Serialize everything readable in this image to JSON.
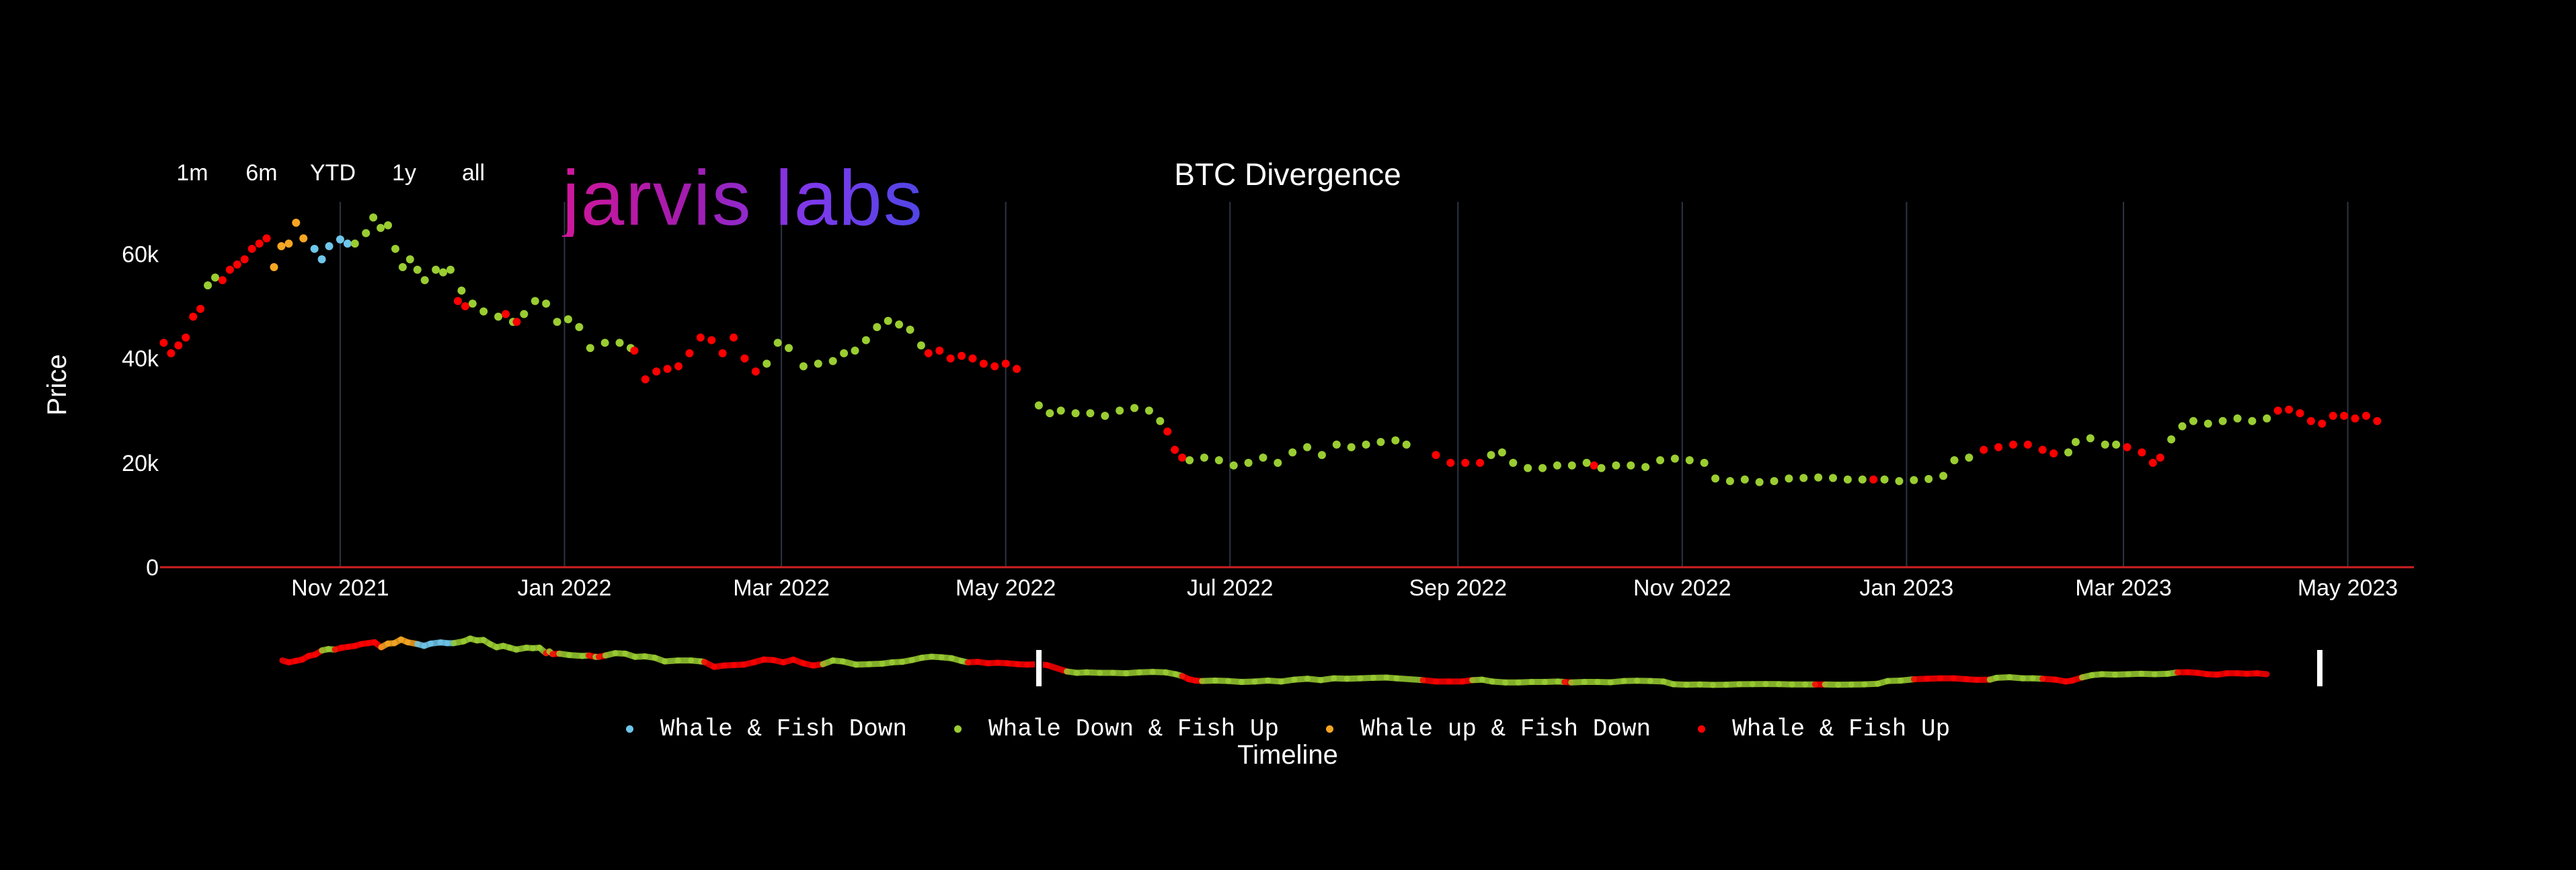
{
  "range_buttons": [
    "1m",
    "6m",
    "YTD",
    "1y",
    "all"
  ],
  "logo_text": "jarvis labs",
  "chart_data": {
    "type": "scatter",
    "title": "BTC Divergence",
    "ylabel": "Price",
    "xlabel": "Timeline",
    "ylim": [
      0,
      70000
    ],
    "xlim": [
      "2021-09-13",
      "2023-05-19"
    ],
    "x_ticks": [
      "2021-11-01",
      "2022-01-01",
      "2022-03-01",
      "2022-05-01",
      "2022-07-01",
      "2022-09-01",
      "2022-11-01",
      "2023-01-01",
      "2023-03-01",
      "2023-05-01"
    ],
    "x_tick_labels": [
      "Nov 2021",
      "Jan 2022",
      "Mar 2022",
      "May 2022",
      "Jul 2022",
      "Sep 2022",
      "Nov 2022",
      "Jan 2023",
      "Mar 2023",
      "May 2023"
    ],
    "y_ticks": [
      0,
      20000,
      40000,
      60000
    ],
    "y_tick_labels": [
      "0",
      "20k",
      "40k",
      "60k"
    ],
    "grid": "vertical",
    "legend_position": "bottom",
    "series": [
      {
        "name": "Whale & Fish Down",
        "color": "#6ec6ea",
        "points": [
          [
            "2021-10-25",
            61000
          ],
          [
            "2021-10-27",
            59000
          ],
          [
            "2021-10-29",
            61500
          ],
          [
            "2021-11-01",
            62800
          ],
          [
            "2021-11-03",
            62000
          ]
        ]
      },
      {
        "name": "Whale Down & Fish Up",
        "color": "#9acd32",
        "points": [
          [
            "2021-09-26",
            54000
          ],
          [
            "2021-09-28",
            55500
          ],
          [
            "2021-11-05",
            62000
          ],
          [
            "2021-11-08",
            64000
          ],
          [
            "2021-11-10",
            67000
          ],
          [
            "2021-11-12",
            65000
          ],
          [
            "2021-11-14",
            65500
          ],
          [
            "2021-11-16",
            61000
          ],
          [
            "2021-11-18",
            57500
          ],
          [
            "2021-11-20",
            59000
          ],
          [
            "2021-11-22",
            57000
          ],
          [
            "2021-11-24",
            55000
          ],
          [
            "2021-11-27",
            57000
          ],
          [
            "2021-11-29",
            56500
          ],
          [
            "2021-12-01",
            57000
          ],
          [
            "2021-12-04",
            53000
          ],
          [
            "2021-12-07",
            50500
          ],
          [
            "2021-12-10",
            49000
          ],
          [
            "2021-12-14",
            48000
          ],
          [
            "2021-12-18",
            47000
          ],
          [
            "2021-12-21",
            48500
          ],
          [
            "2021-12-24",
            51000
          ],
          [
            "2021-12-27",
            50500
          ],
          [
            "2021-12-30",
            47000
          ],
          [
            "2022-01-02",
            47500
          ],
          [
            "2022-01-05",
            46000
          ],
          [
            "2022-01-08",
            42000
          ],
          [
            "2022-01-12",
            43000
          ],
          [
            "2022-01-16",
            43000
          ],
          [
            "2022-01-19",
            42000
          ],
          [
            "2022-02-25",
            39000
          ],
          [
            "2022-02-28",
            43000
          ],
          [
            "2022-03-03",
            42000
          ],
          [
            "2022-03-07",
            38500
          ],
          [
            "2022-03-11",
            39000
          ],
          [
            "2022-03-15",
            39500
          ],
          [
            "2022-03-18",
            41000
          ],
          [
            "2022-03-21",
            41500
          ],
          [
            "2022-03-24",
            43500
          ],
          [
            "2022-03-27",
            46000
          ],
          [
            "2022-03-30",
            47200
          ],
          [
            "2022-04-02",
            46500
          ],
          [
            "2022-04-05",
            45500
          ],
          [
            "2022-04-08",
            42500
          ],
          [
            "2022-05-10",
            31000
          ],
          [
            "2022-05-13",
            29500
          ],
          [
            "2022-05-16",
            30000
          ],
          [
            "2022-05-20",
            29500
          ],
          [
            "2022-05-24",
            29500
          ],
          [
            "2022-05-28",
            29000
          ],
          [
            "2022-06-01",
            30000
          ],
          [
            "2022-06-05",
            30500
          ],
          [
            "2022-06-09",
            30000
          ],
          [
            "2022-06-12",
            28000
          ],
          [
            "2022-06-20",
            20500
          ],
          [
            "2022-06-24",
            21000
          ],
          [
            "2022-06-28",
            20500
          ],
          [
            "2022-07-02",
            19500
          ],
          [
            "2022-07-06",
            20000
          ],
          [
            "2022-07-10",
            21000
          ],
          [
            "2022-07-14",
            20000
          ],
          [
            "2022-07-18",
            22000
          ],
          [
            "2022-07-22",
            23000
          ],
          [
            "2022-07-26",
            21500
          ],
          [
            "2022-07-30",
            23500
          ],
          [
            "2022-08-03",
            23000
          ],
          [
            "2022-08-07",
            23500
          ],
          [
            "2022-08-11",
            24000
          ],
          [
            "2022-08-15",
            24300
          ],
          [
            "2022-08-18",
            23500
          ],
          [
            "2022-09-10",
            21500
          ],
          [
            "2022-09-13",
            22000
          ],
          [
            "2022-09-16",
            20000
          ],
          [
            "2022-09-20",
            19000
          ],
          [
            "2022-09-24",
            19000
          ],
          [
            "2022-09-28",
            19500
          ],
          [
            "2022-10-02",
            19500
          ],
          [
            "2022-10-06",
            20000
          ],
          [
            "2022-10-10",
            19000
          ],
          [
            "2022-10-14",
            19500
          ],
          [
            "2022-10-18",
            19500
          ],
          [
            "2022-10-22",
            19200
          ],
          [
            "2022-10-26",
            20500
          ],
          [
            "2022-10-30",
            20800
          ],
          [
            "2022-11-03",
            20500
          ],
          [
            "2022-11-07",
            20000
          ],
          [
            "2022-11-10",
            17000
          ],
          [
            "2022-11-14",
            16500
          ],
          [
            "2022-11-18",
            16800
          ],
          [
            "2022-11-22",
            16300
          ],
          [
            "2022-11-26",
            16500
          ],
          [
            "2022-11-30",
            17000
          ],
          [
            "2022-12-04",
            17100
          ],
          [
            "2022-12-08",
            17200
          ],
          [
            "2022-12-12",
            17100
          ],
          [
            "2022-12-16",
            16800
          ],
          [
            "2022-12-20",
            16800
          ],
          [
            "2022-12-26",
            16800
          ],
          [
            "2022-12-30",
            16500
          ],
          [
            "2023-01-03",
            16700
          ],
          [
            "2023-01-07",
            16900
          ],
          [
            "2023-01-11",
            17500
          ],
          [
            "2023-01-14",
            20500
          ],
          [
            "2023-01-18",
            21000
          ],
          [
            "2023-02-14",
            22000
          ],
          [
            "2023-02-16",
            24000
          ],
          [
            "2023-02-20",
            24700
          ],
          [
            "2023-02-24",
            23500
          ],
          [
            "2023-02-27",
            23500
          ],
          [
            "2023-03-14",
            24500
          ],
          [
            "2023-03-17",
            27000
          ],
          [
            "2023-03-20",
            28000
          ],
          [
            "2023-03-24",
            27500
          ],
          [
            "2023-03-28",
            28000
          ],
          [
            "2023-04-01",
            28500
          ],
          [
            "2023-04-05",
            28000
          ],
          [
            "2023-04-09",
            28500
          ]
        ]
      },
      {
        "name": "Whale up & Fish Down",
        "color": "#f5a623",
        "points": [
          [
            "2021-10-14",
            57500
          ],
          [
            "2021-10-16",
            61500
          ],
          [
            "2021-10-18",
            62000
          ],
          [
            "2021-10-20",
            66000
          ],
          [
            "2021-10-22",
            63000
          ]
        ]
      },
      {
        "name": "Whale & Fish Up",
        "color": "#ff0000",
        "points": [
          [
            "2021-09-14",
            43000
          ],
          [
            "2021-09-16",
            41000
          ],
          [
            "2021-09-18",
            42500
          ],
          [
            "2021-09-20",
            44000
          ],
          [
            "2021-09-22",
            48000
          ],
          [
            "2021-09-24",
            49500
          ],
          [
            "2021-09-30",
            55000
          ],
          [
            "2021-10-02",
            57000
          ],
          [
            "2021-10-04",
            58000
          ],
          [
            "2021-10-06",
            59000
          ],
          [
            "2021-10-08",
            61000
          ],
          [
            "2021-10-10",
            62000
          ],
          [
            "2021-10-12",
            63000
          ],
          [
            "2021-12-03",
            51000
          ],
          [
            "2021-12-05",
            50000
          ],
          [
            "2021-12-16",
            48500
          ],
          [
            "2021-12-19",
            47000
          ],
          [
            "2022-01-20",
            41500
          ],
          [
            "2022-01-23",
            36000
          ],
          [
            "2022-01-26",
            37500
          ],
          [
            "2022-01-29",
            38000
          ],
          [
            "2022-02-01",
            38500
          ],
          [
            "2022-02-04",
            41000
          ],
          [
            "2022-02-07",
            44000
          ],
          [
            "2022-02-10",
            43500
          ],
          [
            "2022-02-13",
            41000
          ],
          [
            "2022-02-16",
            44000
          ],
          [
            "2022-02-19",
            40000
          ],
          [
            "2022-02-22",
            37500
          ],
          [
            "2022-04-10",
            41000
          ],
          [
            "2022-04-13",
            41500
          ],
          [
            "2022-04-16",
            40000
          ],
          [
            "2022-04-19",
            40500
          ],
          [
            "2022-04-22",
            40000
          ],
          [
            "2022-04-25",
            39000
          ],
          [
            "2022-04-28",
            38500
          ],
          [
            "2022-05-01",
            39000
          ],
          [
            "2022-05-04",
            38000
          ],
          [
            "2022-06-14",
            26000
          ],
          [
            "2022-06-16",
            22500
          ],
          [
            "2022-06-18",
            21000
          ],
          [
            "2022-08-26",
            21500
          ],
          [
            "2022-08-30",
            20000
          ],
          [
            "2022-09-03",
            20000
          ],
          [
            "2022-09-07",
            20000
          ],
          [
            "2022-10-08",
            19500
          ],
          [
            "2022-12-23",
            16800
          ],
          [
            "2023-01-22",
            22500
          ],
          [
            "2023-01-26",
            23000
          ],
          [
            "2023-01-30",
            23500
          ],
          [
            "2023-02-03",
            23500
          ],
          [
            "2023-02-07",
            22500
          ],
          [
            "2023-02-10",
            21800
          ],
          [
            "2023-03-02",
            23000
          ],
          [
            "2023-03-06",
            22000
          ],
          [
            "2023-03-09",
            20000
          ],
          [
            "2023-03-11",
            21000
          ],
          [
            "2023-04-12",
            30000
          ],
          [
            "2023-04-15",
            30200
          ],
          [
            "2023-04-18",
            29500
          ],
          [
            "2023-04-21",
            28000
          ],
          [
            "2023-04-24",
            27500
          ],
          [
            "2023-04-27",
            29000
          ],
          [
            "2023-04-30",
            29000
          ],
          [
            "2023-05-03",
            28500
          ],
          [
            "2023-05-06",
            29000
          ],
          [
            "2023-05-09",
            28000
          ]
        ]
      }
    ]
  },
  "colors": {
    "axis_line": "#d02020",
    "grid": "#2c3444",
    "background": "#000000"
  }
}
